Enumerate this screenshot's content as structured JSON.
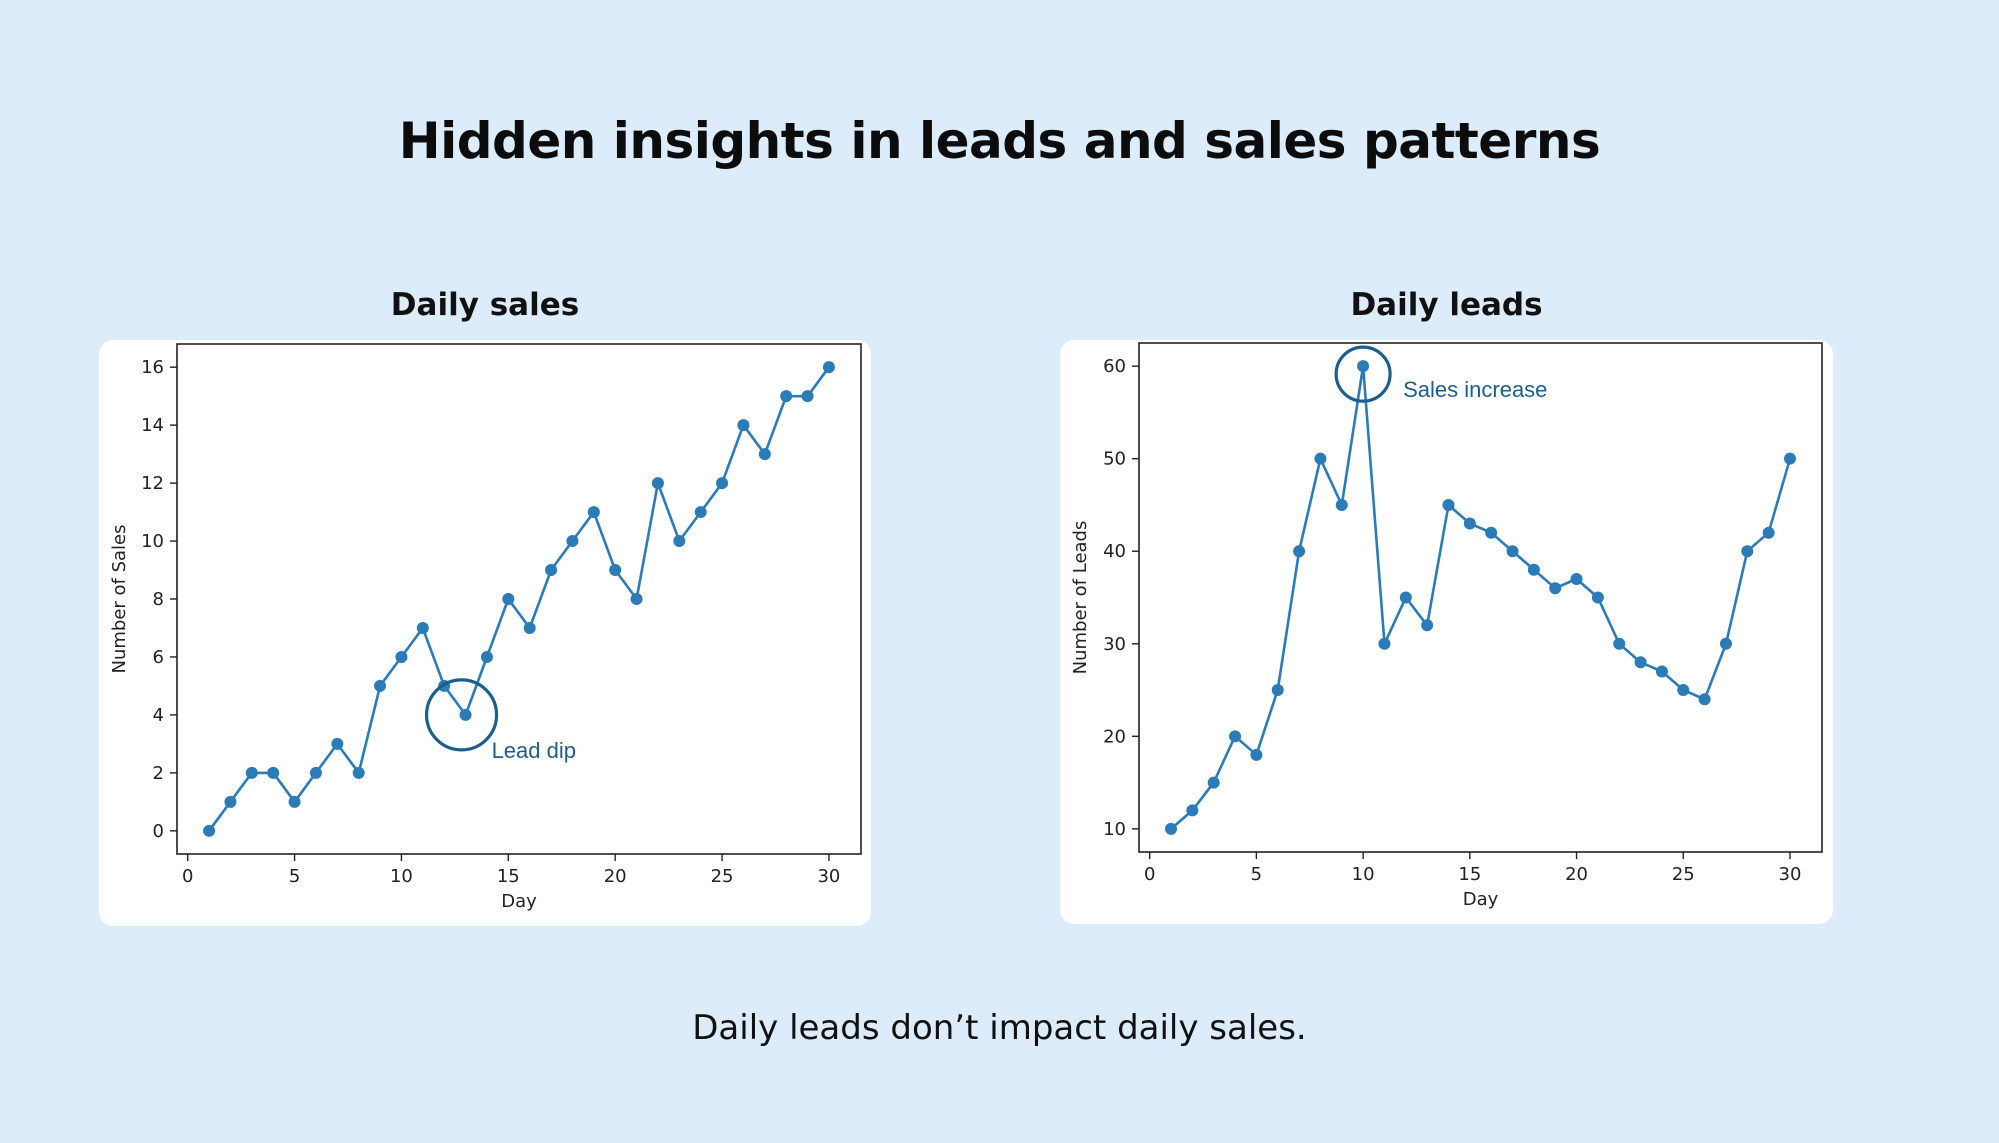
{
  "slide": {
    "title": "Hidden insights in leads and sales patterns",
    "footer": "Daily leads don’t impact daily sales."
  },
  "colors": {
    "background": "#dcecfb",
    "line": "#2a7bb8",
    "annotation": "#1d5f8c"
  },
  "chart_data": [
    {
      "type": "line",
      "title": "Daily sales",
      "xlabel": "Day",
      "ylabel": "Number of Sales",
      "x": [
        1,
        2,
        3,
        4,
        5,
        6,
        7,
        8,
        9,
        10,
        11,
        12,
        13,
        14,
        15,
        16,
        17,
        18,
        19,
        20,
        21,
        22,
        23,
        24,
        25,
        26,
        27,
        28,
        29,
        30
      ],
      "y": [
        0,
        1,
        2,
        2,
        1,
        2,
        3,
        2,
        5,
        6,
        7,
        5,
        4,
        6,
        8,
        7,
        9,
        10,
        11,
        9,
        8,
        12,
        10,
        11,
        12,
        14,
        13,
        15,
        15,
        16
      ],
      "xlim": [
        -0.5,
        31.5
      ],
      "ylim": [
        -0.8,
        16.8
      ],
      "xticks": [
        0,
        5,
        10,
        15,
        20,
        25,
        30
      ],
      "yticks": [
        0,
        2,
        4,
        6,
        8,
        10,
        12,
        14,
        16
      ],
      "markers": true,
      "grid": false,
      "annotation": {
        "text": "Lead dip",
        "x": 13,
        "y": 4
      }
    },
    {
      "type": "line",
      "title": "Daily leads",
      "xlabel": "Day",
      "ylabel": "Number of Leads",
      "x": [
        1,
        2,
        3,
        4,
        5,
        6,
        7,
        8,
        9,
        10,
        11,
        12,
        13,
        14,
        15,
        16,
        17,
        18,
        19,
        20,
        21,
        22,
        23,
        24,
        25,
        26,
        27,
        28,
        29,
        30
      ],
      "y": [
        10,
        12,
        15,
        20,
        18,
        25,
        40,
        50,
        45,
        60,
        30,
        35,
        32,
        45,
        43,
        42,
        40,
        38,
        36,
        37,
        35,
        30,
        28,
        27,
        25,
        24,
        30,
        40,
        42,
        50
      ],
      "xlim": [
        -0.5,
        31.5
      ],
      "ylim": [
        7.5,
        62.5
      ],
      "xticks": [
        0,
        5,
        10,
        15,
        20,
        25,
        30
      ],
      "yticks": [
        10,
        20,
        30,
        40,
        50,
        60
      ],
      "markers": true,
      "grid": false,
      "annotation": {
        "text": "Sales increase",
        "x": 10,
        "y": 60
      }
    }
  ]
}
